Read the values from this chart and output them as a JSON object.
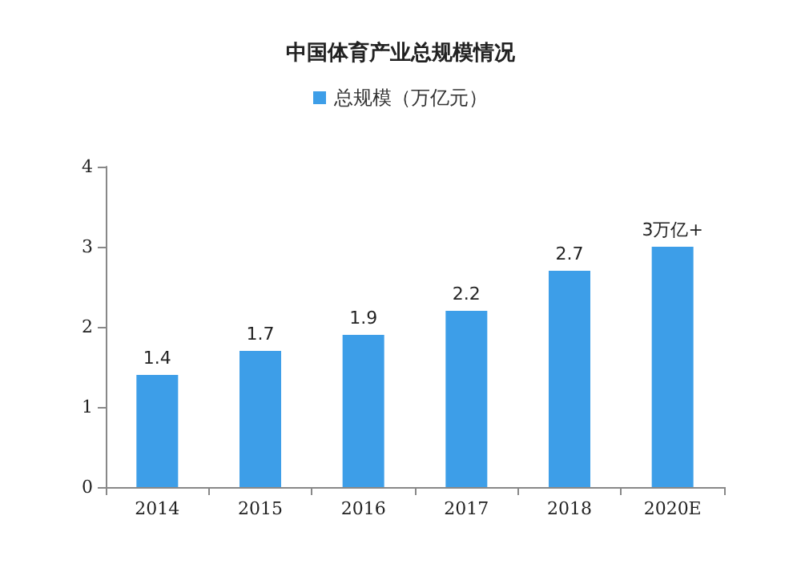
{
  "chart_data": {
    "type": "bar",
    "title": "中国体育产业总规模情况",
    "categories": [
      "2014",
      "2015",
      "2016",
      "2017",
      "2018",
      "2020E"
    ],
    "series": [
      {
        "name": "总规模（万亿元）",
        "color": "#3d9ee8",
        "values": [
          1.4,
          1.7,
          1.9,
          2.2,
          2.7,
          3
        ]
      }
    ],
    "value_labels": [
      "1.4",
      "1.7",
      "1.9",
      "2.2",
      "2.7",
      "3万亿+"
    ],
    "ylim": [
      0,
      4
    ],
    "yticks": [
      0,
      1,
      2,
      3,
      4
    ],
    "grid": false,
    "legend": "top"
  }
}
